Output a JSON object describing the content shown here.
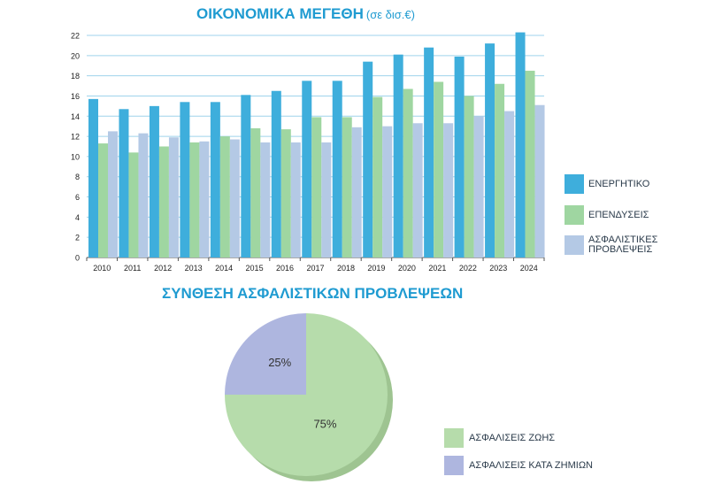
{
  "chart_data": [
    {
      "type": "bar",
      "title": "ΟΙΚΟΝΟΜΙΚΑ ΜΕΓΕΘΗ",
      "unit": "(σε δισ.€)",
      "categories": [
        "2010",
        "2011",
        "2012",
        "2013",
        "2014",
        "2015",
        "2016",
        "2017",
        "2018",
        "2019",
        "2020",
        "2021",
        "2022",
        "2023",
        "2024"
      ],
      "series": [
        {
          "name": "ΕΝΕΡΓΗΤΙΚΟ",
          "color": "#3eaedc",
          "values": [
            15.7,
            14.7,
            15.0,
            15.4,
            15.4,
            16.1,
            16.5,
            17.5,
            17.5,
            19.4,
            20.1,
            20.8,
            19.9,
            21.2,
            22.3
          ]
        },
        {
          "name": "ΕΠΕΝΔΥΣΕΙΣ",
          "color": "#9fd6a1",
          "values": [
            11.3,
            10.4,
            11.0,
            11.4,
            12.0,
            12.8,
            12.7,
            13.9,
            13.9,
            15.9,
            16.7,
            17.4,
            16.0,
            17.2,
            18.5
          ]
        },
        {
          "name": "ΑΣΦΑΛΙΣΤΙΚΕΣ ΠΡΟΒΛΕΨΕΙΣ",
          "name_lines": [
            "ΑΣΦΑΛΙΣΤΙΚΕΣ",
            "ΠΡΟΒΛΕΨΕΙΣ"
          ],
          "color": "#b4c9e5",
          "values": [
            12.5,
            12.3,
            11.9,
            11.5,
            11.7,
            11.4,
            11.4,
            11.4,
            12.9,
            13.0,
            13.3,
            13.3,
            14.0,
            14.5,
            15.1
          ]
        }
      ],
      "yticks": [
        0,
        2,
        4,
        6,
        8,
        10,
        12,
        14,
        16,
        18,
        20,
        22
      ],
      "ylim": [
        0,
        22
      ],
      "grid": true,
      "legend_position": "right"
    },
    {
      "type": "pie",
      "title": "ΣΥΝΘΕΣΗ ΑΣΦΑΛΙΣΤΙΚΩΝ ΠΡΟΒΛΕΨΕΩΝ",
      "slices": [
        {
          "name": "ΑΣΦΑΛΙΣΕΙΣ ΖΩΗΣ",
          "value": 75,
          "label": "75%",
          "color": "#b6dcab"
        },
        {
          "name": "ΑΣΦΑΛΙΣΕΙΣ ΚΑΤΑ ΖΗΜΙΩΝ",
          "value": 25,
          "label": "25%",
          "color": "#aeb6df"
        }
      ],
      "legend_position": "bottom-right"
    }
  ]
}
